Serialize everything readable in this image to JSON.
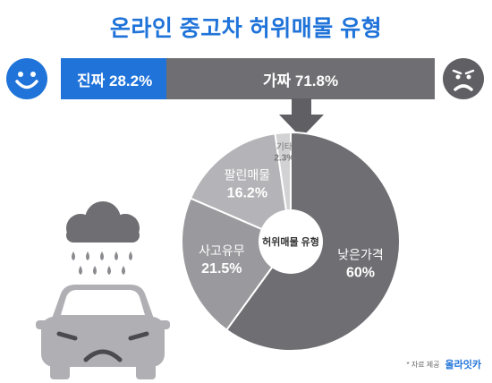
{
  "title": "온라인 중고차 허위매물 유형",
  "bar": {
    "real_label": "진짜 28.2%",
    "fake_label": "가짜 71.8%",
    "real_color": "#1f73d9",
    "fake_color": "#6e6e73"
  },
  "icons": {
    "happy": "smiley-face-icon",
    "sad": "sad-face-icon",
    "arrow": "down-arrow-icon",
    "cloud": "rain-cloud-icon",
    "car": "sad-car-icon"
  },
  "chart_data": {
    "type": "pie",
    "center_label": "허위매물 유형",
    "slices": [
      {
        "label": "낮은가격",
        "value": 60,
        "value_label": "60%",
        "color": "#6e6e73"
      },
      {
        "label": "사고유무",
        "value": 21.5,
        "value_label": "21.5%",
        "color": "#9a9a9e"
      },
      {
        "label": "팔린매물",
        "value": 16.2,
        "value_label": "16.2%",
        "color": "#b4b4b8"
      },
      {
        "label": "기타",
        "value": 2.3,
        "value_label": "2.3%",
        "color": "#d2d2d5"
      }
    ]
  },
  "credit": {
    "label": "* 자료 제공",
    "brand": "올라잇카"
  }
}
